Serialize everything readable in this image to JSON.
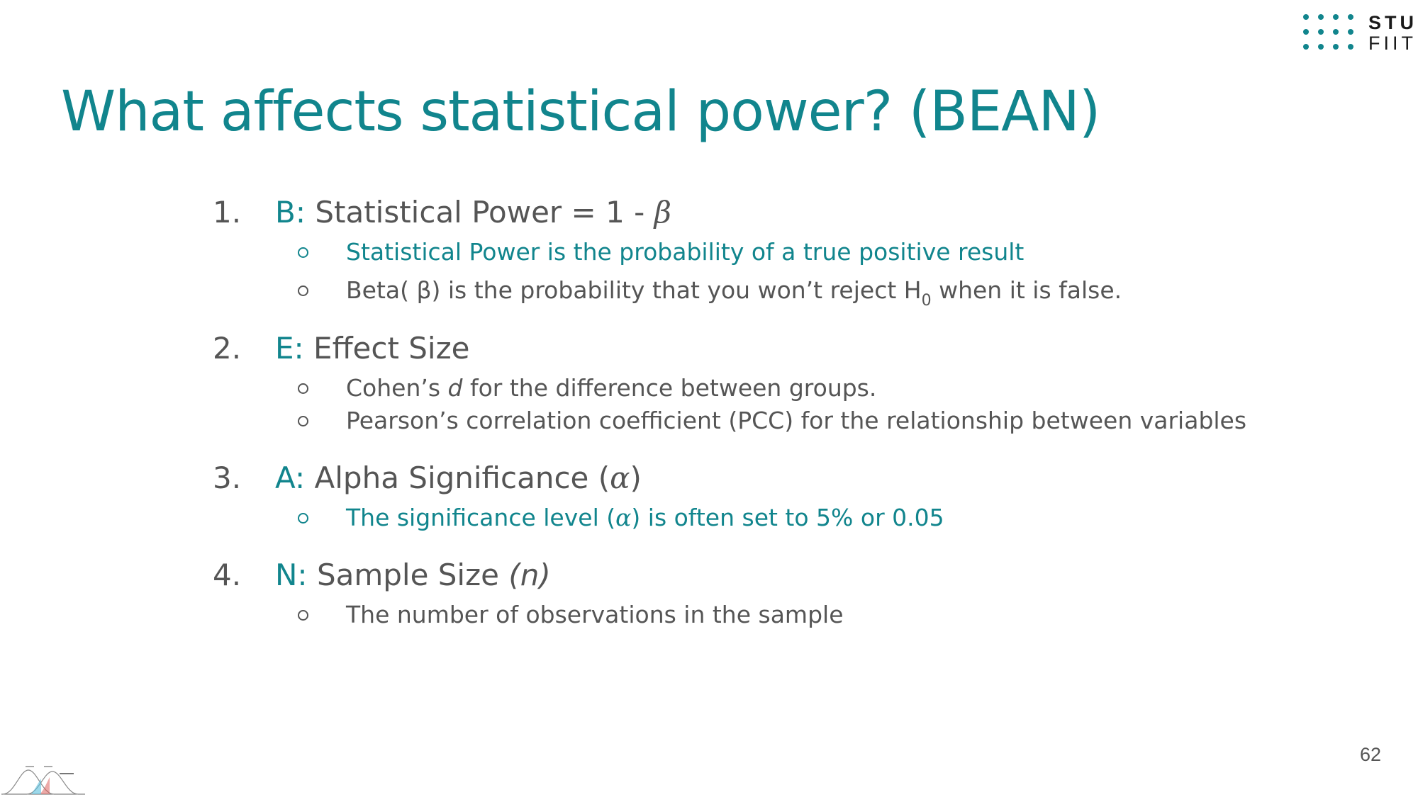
{
  "logo": {
    "line1": "STU",
    "line2": "FIIT"
  },
  "title": "What affects statistical power? (BEAN)",
  "items": [
    {
      "number": "1.",
      "letter": "B:",
      "label": "Statistical Power = 1 -",
      "symbol": "β",
      "subs": [
        {
          "text": "Statistical Power is the probability of a true positive result"
        },
        {
          "pre": "Beta( β) is the probability that you won’t reject H",
          "subscript": "0",
          "post": " when it is false."
        }
      ]
    },
    {
      "number": "2.",
      "letter": "E:",
      "label": "Effect Size",
      "subs": [
        {
          "pre": "Cohen’s ",
          "italic": "d",
          "post": " for the difference between groups."
        },
        {
          "text": "Pearson’s correlation coefficient (PCC) for the relationship between variables"
        }
      ]
    },
    {
      "number": "3.",
      "letter": "A:",
      "label": "Alpha Significance (",
      "symbol": "α",
      "label_end": ")",
      "subs": [
        {
          "pre": "The significance level (",
          "symbol": "α",
          "post": ") is often set to 5% or 0.05"
        }
      ]
    },
    {
      "number": "4.",
      "letter": "N:",
      "label": "Sample Size ",
      "italic": "(n)",
      "subs": [
        {
          "text": "The number of observations in the sample"
        }
      ]
    }
  ],
  "page_number": "62",
  "colors": {
    "accent": "#11858d",
    "text": "#555555"
  }
}
